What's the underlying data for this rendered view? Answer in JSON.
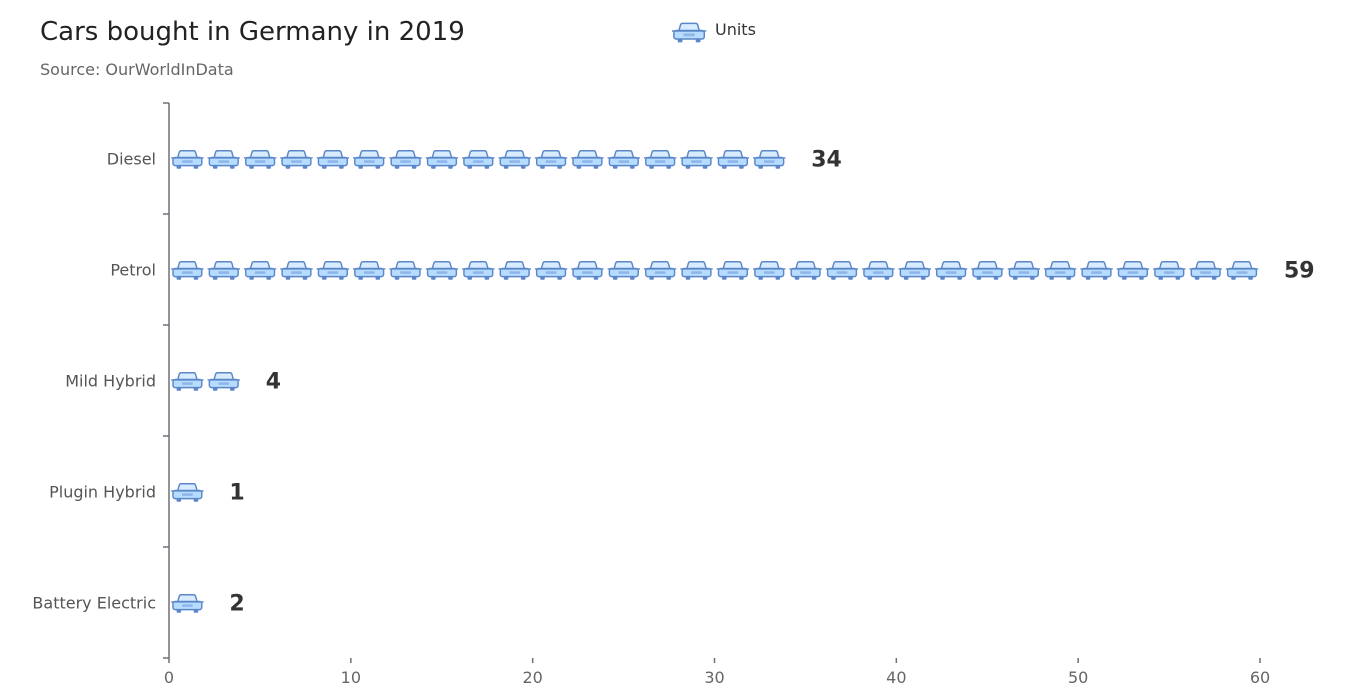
{
  "chart_data": {
    "type": "bar",
    "title": "Cars bought in Germany in 2019",
    "subtitle": "Source: OurWorldInData",
    "legend": {
      "position": "top-center",
      "items": [
        {
          "name": "Units",
          "icon": "car-icon"
        }
      ]
    },
    "categories": [
      "Diesel",
      "Petrol",
      "Mild Hybrid",
      "Plugin Hybrid",
      "Battery Electric"
    ],
    "series": [
      {
        "name": "Units",
        "values": [
          34,
          59,
          4,
          1,
          2
        ],
        "symbol": "car-icon",
        "symbol_repeat_unit": 2
      }
    ],
    "xlim": [
      0,
      60
    ],
    "xticks": [
      0,
      10,
      20,
      30,
      40,
      50,
      60
    ],
    "grid": false,
    "colors": {
      "car_fill": "#b6dcff",
      "car_stroke": "#5b86c8",
      "axis": "#6e7079"
    }
  }
}
